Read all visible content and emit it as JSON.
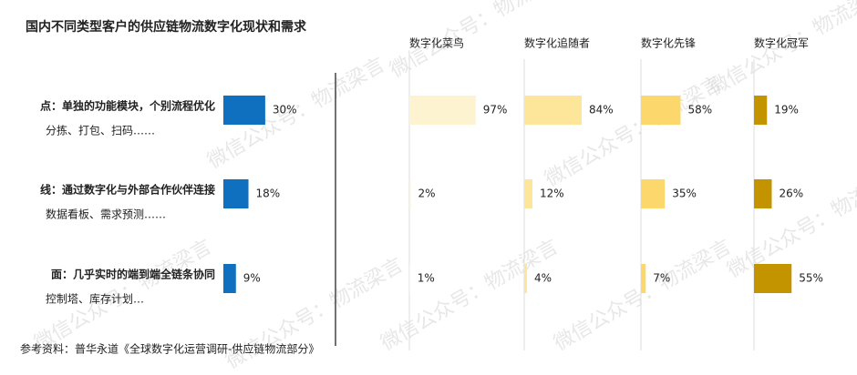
{
  "title": "国内不同类型客户的供应链物流数字化现状和需求",
  "source": "参考资料：普华永道《全球数字化运营调研-供应链物流部分》",
  "watermark": "微信公众号：物流梁言",
  "chart_data": [
    {
      "type": "bar",
      "orientation": "horizontal",
      "categories": [
        "点：单独的功能模块，个别流程优化",
        "线：通过数字化与外部合作伙伴连接",
        "面：几乎实时的端到端全链条协同"
      ],
      "category_notes": [
        "分拣、打包、扫码……",
        "数据看板、需求预测……",
        "控制塔、库存计划…"
      ],
      "values": [
        30,
        18,
        9
      ],
      "value_labels": [
        "30%",
        "18%",
        "9%"
      ],
      "color": "#1070c0"
    },
    {
      "type": "bar",
      "orientation": "horizontal",
      "title": "数字化菜鸟",
      "values": [
        97,
        2,
        1
      ],
      "value_labels": [
        "97%",
        "2%",
        "1%"
      ],
      "color": "#fdf3d0"
    },
    {
      "type": "bar",
      "orientation": "horizontal",
      "title": "数字化追随者",
      "values": [
        84,
        12,
        4
      ],
      "value_labels": [
        "84%",
        "12%",
        "4%"
      ],
      "color": "#fde59a"
    },
    {
      "type": "bar",
      "orientation": "horizontal",
      "title": "数字化先锋",
      "values": [
        58,
        35,
        7
      ],
      "value_labels": [
        "58%",
        "35%",
        "7%"
      ],
      "color": "#fcd76b"
    },
    {
      "type": "bar",
      "orientation": "horizontal",
      "title": "数字化冠军",
      "values": [
        19,
        26,
        55
      ],
      "value_labels": [
        "19%",
        "26%",
        "55%"
      ],
      "color": "#c49400"
    }
  ]
}
